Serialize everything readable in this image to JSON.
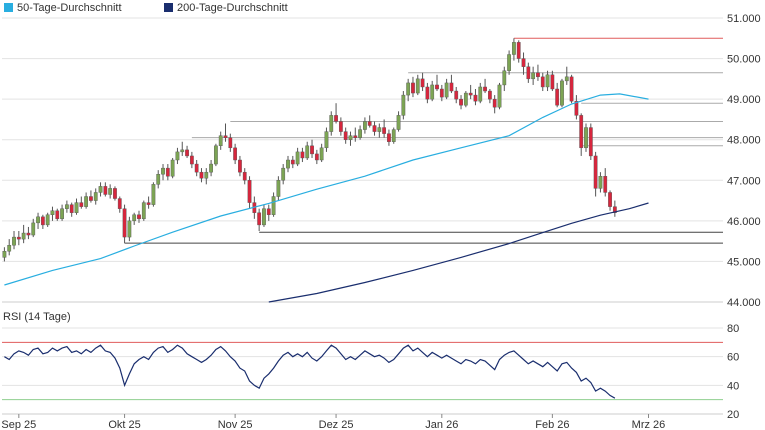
{
  "legend": {
    "ma50_label": "50-Tage-Durchschnitt",
    "ma200_label": "200-Tage-Durchschnitt"
  },
  "rsi_label": "RSI (14 Tage)",
  "colors": {
    "ma50": "#29aee0",
    "ma200": "#1a2e6e",
    "up": "#7ca454",
    "down": "#d7263d",
    "rsi_line": "#1a2e6e",
    "rsi_upper": "#e05c5c",
    "rsi_lower": "#8fcf8f",
    "grid": "#e3e3e3",
    "level": "#444444",
    "level_light": "#aaaaaa",
    "peak": "#e05c5c"
  },
  "chart_data": [
    {
      "type": "candlestick",
      "ylim": [
        44.0,
        51.0
      ],
      "y_ticks": [
        "51.000",
        "50.000",
        "49.000",
        "48.000",
        "47.000",
        "46.000",
        "45.000",
        "44.000"
      ],
      "y_tick_values": [
        51,
        50,
        49,
        48,
        47,
        46,
        45,
        44
      ],
      "x_ticks": [
        {
          "label": "Sep 25",
          "index": 3
        },
        {
          "label": "Okt 25",
          "index": 25
        },
        {
          "label": "Nov 25",
          "index": 48
        },
        {
          "label": "Dez 25",
          "index": 69
        },
        {
          "label": "Jan 26",
          "index": 91
        },
        {
          "label": "Feb 26",
          "index": 114
        },
        {
          "label": "Mrz 26",
          "index": 134
        }
      ],
      "n_days": 150,
      "ohlc": [
        [
          45.1,
          45.35,
          45.0,
          45.25
        ],
        [
          45.25,
          45.55,
          45.15,
          45.4
        ],
        [
          45.4,
          45.75,
          45.3,
          45.6
        ],
        [
          45.6,
          45.75,
          45.4,
          45.55
        ],
        [
          45.55,
          45.9,
          45.45,
          45.7
        ],
        [
          45.7,
          45.85,
          45.55,
          45.65
        ],
        [
          45.65,
          46.05,
          45.6,
          45.95
        ],
        [
          45.95,
          46.2,
          45.8,
          46.1
        ],
        [
          46.1,
          46.15,
          45.8,
          45.9
        ],
        [
          45.9,
          46.2,
          45.85,
          46.15
        ],
        [
          46.15,
          46.35,
          46.0,
          46.25
        ],
        [
          46.25,
          46.3,
          46.0,
          46.05
        ],
        [
          46.05,
          46.4,
          46.0,
          46.3
        ],
        [
          46.3,
          46.5,
          46.2,
          46.4
        ],
        [
          46.4,
          46.45,
          46.1,
          46.2
        ],
        [
          46.2,
          46.55,
          46.15,
          46.45
        ],
        [
          46.45,
          46.6,
          46.3,
          46.35
        ],
        [
          46.35,
          46.7,
          46.3,
          46.6
        ],
        [
          46.6,
          46.75,
          46.45,
          46.5
        ],
        [
          46.5,
          46.8,
          46.4,
          46.7
        ],
        [
          46.7,
          46.95,
          46.6,
          46.85
        ],
        [
          46.85,
          46.95,
          46.6,
          46.65
        ],
        [
          46.65,
          46.9,
          46.55,
          46.8
        ],
        [
          46.8,
          46.85,
          46.5,
          46.55
        ],
        [
          46.55,
          46.6,
          46.2,
          46.3
        ],
        [
          46.3,
          46.4,
          45.45,
          45.6
        ],
        [
          45.6,
          46.1,
          45.5,
          46.0
        ],
        [
          46.0,
          46.2,
          45.9,
          46.15
        ],
        [
          46.15,
          46.25,
          45.95,
          46.05
        ],
        [
          46.05,
          46.5,
          46.0,
          46.45
        ],
        [
          46.45,
          46.6,
          46.3,
          46.4
        ],
        [
          46.4,
          46.95,
          46.35,
          46.9
        ],
        [
          46.9,
          47.25,
          46.8,
          47.15
        ],
        [
          47.15,
          47.4,
          47.0,
          47.3
        ],
        [
          47.3,
          47.4,
          47.0,
          47.1
        ],
        [
          47.1,
          47.55,
          47.05,
          47.5
        ],
        [
          47.5,
          47.8,
          47.4,
          47.7
        ],
        [
          47.7,
          47.95,
          47.6,
          47.75
        ],
        [
          47.75,
          47.85,
          47.55,
          47.6
        ],
        [
          47.6,
          47.7,
          47.3,
          47.4
        ],
        [
          47.4,
          47.5,
          47.1,
          47.2
        ],
        [
          47.2,
          47.3,
          46.95,
          47.05
        ],
        [
          47.05,
          47.3,
          46.9,
          47.2
        ],
        [
          47.2,
          47.5,
          47.1,
          47.4
        ],
        [
          47.4,
          47.9,
          47.35,
          47.85
        ],
        [
          47.85,
          48.2,
          47.75,
          48.1
        ],
        [
          48.1,
          48.4,
          47.95,
          48.05
        ],
        [
          48.05,
          48.15,
          47.7,
          47.8
        ],
        [
          47.8,
          47.9,
          47.4,
          47.5
        ],
        [
          47.5,
          47.6,
          47.1,
          47.2
        ],
        [
          47.2,
          47.3,
          46.9,
          47.0
        ],
        [
          47.0,
          47.1,
          46.3,
          46.45
        ],
        [
          46.45,
          46.6,
          46.05,
          46.2
        ],
        [
          46.2,
          46.3,
          45.75,
          45.9
        ],
        [
          45.9,
          46.4,
          45.85,
          46.3
        ],
        [
          46.3,
          46.4,
          46.0,
          46.15
        ],
        [
          46.15,
          46.7,
          46.1,
          46.6
        ],
        [
          46.6,
          47.1,
          46.5,
          47.0
        ],
        [
          47.0,
          47.4,
          46.9,
          47.3
        ],
        [
          47.3,
          47.6,
          47.2,
          47.5
        ],
        [
          47.5,
          47.6,
          47.3,
          47.4
        ],
        [
          47.4,
          47.8,
          47.35,
          47.7
        ],
        [
          47.7,
          47.8,
          47.45,
          47.55
        ],
        [
          47.55,
          47.95,
          47.5,
          47.85
        ],
        [
          47.85,
          48.0,
          47.55,
          47.65
        ],
        [
          47.65,
          47.75,
          47.4,
          47.5
        ],
        [
          47.5,
          47.9,
          47.45,
          47.8
        ],
        [
          47.8,
          48.3,
          47.7,
          48.2
        ],
        [
          48.2,
          48.7,
          48.1,
          48.6
        ],
        [
          48.6,
          48.9,
          48.4,
          48.45
        ],
        [
          48.45,
          48.55,
          48.1,
          48.2
        ],
        [
          48.2,
          48.3,
          47.9,
          48.0
        ],
        [
          48.0,
          48.2,
          47.85,
          48.1
        ],
        [
          48.1,
          48.3,
          47.95,
          48.05
        ],
        [
          48.05,
          48.35,
          48.0,
          48.25
        ],
        [
          48.25,
          48.55,
          48.15,
          48.45
        ],
        [
          48.45,
          48.6,
          48.3,
          48.35
        ],
        [
          48.35,
          48.45,
          48.1,
          48.2
        ],
        [
          48.2,
          48.4,
          48.05,
          48.3
        ],
        [
          48.3,
          48.5,
          48.05,
          48.15
        ],
        [
          48.15,
          48.25,
          47.85,
          47.95
        ],
        [
          47.95,
          48.3,
          47.9,
          48.25
        ],
        [
          48.25,
          48.7,
          48.2,
          48.6
        ],
        [
          48.6,
          49.2,
          48.5,
          49.1
        ],
        [
          49.1,
          49.5,
          48.95,
          49.4
        ],
        [
          49.4,
          49.55,
          49.05,
          49.15
        ],
        [
          49.15,
          49.6,
          49.1,
          49.5
        ],
        [
          49.5,
          49.65,
          49.2,
          49.3
        ],
        [
          49.3,
          49.4,
          48.9,
          49.0
        ],
        [
          49.0,
          49.45,
          48.95,
          49.35
        ],
        [
          49.35,
          49.6,
          49.2,
          49.25
        ],
        [
          49.25,
          49.35,
          48.95,
          49.05
        ],
        [
          49.05,
          49.5,
          49.0,
          49.4
        ],
        [
          49.4,
          49.6,
          49.15,
          49.2
        ],
        [
          49.2,
          49.3,
          48.9,
          49.0
        ],
        [
          49.0,
          49.1,
          48.75,
          48.85
        ],
        [
          48.85,
          49.2,
          48.8,
          49.15
        ],
        [
          49.15,
          49.35,
          49.0,
          49.1
        ],
        [
          49.1,
          49.25,
          48.85,
          48.95
        ],
        [
          48.95,
          49.4,
          48.9,
          49.3
        ],
        [
          49.3,
          49.5,
          49.15,
          49.2
        ],
        [
          49.2,
          49.25,
          48.9,
          49.0
        ],
        [
          49.0,
          49.1,
          48.65,
          48.8
        ],
        [
          48.8,
          49.4,
          48.75,
          49.35
        ],
        [
          49.35,
          49.8,
          49.2,
          49.7
        ],
        [
          49.7,
          50.2,
          49.6,
          50.1
        ],
        [
          50.1,
          50.5,
          49.95,
          50.4
        ],
        [
          50.4,
          50.45,
          49.9,
          50.0
        ],
        [
          50.0,
          50.15,
          49.6,
          49.8
        ],
        [
          49.8,
          49.9,
          49.4,
          49.5
        ],
        [
          49.5,
          49.8,
          49.35,
          49.65
        ],
        [
          49.65,
          49.85,
          49.45,
          49.55
        ],
        [
          49.55,
          49.65,
          49.2,
          49.3
        ],
        [
          49.3,
          49.7,
          49.2,
          49.6
        ],
        [
          49.6,
          49.7,
          49.2,
          49.25
        ],
        [
          49.25,
          49.4,
          48.8,
          48.85
        ],
        [
          48.85,
          49.5,
          48.8,
          49.45
        ],
        [
          49.45,
          49.8,
          49.35,
          49.55
        ],
        [
          49.55,
          49.6,
          48.9,
          48.95
        ],
        [
          48.95,
          49.1,
          48.5,
          48.6
        ],
        [
          48.6,
          48.65,
          47.6,
          47.8
        ],
        [
          47.8,
          48.4,
          47.7,
          48.3
        ],
        [
          48.3,
          48.4,
          47.5,
          47.6
        ],
        [
          47.6,
          47.7,
          46.6,
          46.8
        ],
        [
          46.8,
          47.2,
          46.7,
          47.1
        ],
        [
          47.1,
          47.3,
          46.6,
          46.7
        ],
        [
          46.7,
          46.75,
          46.25,
          46.35
        ],
        [
          46.35,
          46.5,
          46.1,
          46.2
        ]
      ],
      "ma50": [
        [
          0,
          44.42
        ],
        [
          10,
          44.78
        ],
        [
          20,
          45.07
        ],
        [
          27,
          45.38
        ],
        [
          35,
          45.72
        ],
        [
          45,
          46.12
        ],
        [
          55,
          46.43
        ],
        [
          65,
          46.78
        ],
        [
          75,
          47.1
        ],
        [
          85,
          47.5
        ],
        [
          95,
          47.8
        ],
        [
          105,
          48.1
        ],
        [
          112,
          48.55
        ],
        [
          118,
          48.88
        ],
        [
          124,
          49.1
        ],
        [
          128,
          49.13
        ],
        [
          134,
          49.0
        ]
      ],
      "ma200": [
        [
          55,
          44.0
        ],
        [
          65,
          44.21
        ],
        [
          75,
          44.48
        ],
        [
          85,
          44.78
        ],
        [
          95,
          45.1
        ],
        [
          105,
          45.44
        ],
        [
          112,
          45.71
        ],
        [
          118,
          45.94
        ],
        [
          124,
          46.14
        ],
        [
          130,
          46.3
        ],
        [
          134,
          46.44
        ]
      ],
      "levels": [
        {
          "value": 50.5,
          "from": 106,
          "type": "peak"
        },
        {
          "value": 49.65,
          "from": 84,
          "type": "light"
        },
        {
          "value": 48.9,
          "from": 120,
          "type": "light"
        },
        {
          "value": 48.45,
          "from": 47,
          "type": "light"
        },
        {
          "value": 48.05,
          "from": 39,
          "type": "light"
        },
        {
          "value": 47.85,
          "from": 120,
          "type": "light"
        },
        {
          "value": 45.72,
          "from": 53,
          "type": "dark"
        },
        {
          "value": 45.45,
          "from": 25,
          "type": "dark"
        }
      ]
    },
    {
      "type": "line",
      "name": "RSI",
      "ylim": [
        20,
        80
      ],
      "y_ticks": [
        "80",
        "60",
        "40",
        "20"
      ],
      "y_tick_values": [
        80,
        60,
        40,
        20
      ],
      "upper_level": 70,
      "lower_level": 30,
      "values": [
        60,
        58,
        62,
        64,
        63,
        61,
        65,
        66,
        62,
        63,
        66,
        64,
        66,
        67,
        63,
        64,
        62,
        65,
        63,
        66,
        68,
        64,
        63,
        59,
        52,
        40,
        48,
        55,
        58,
        60,
        58,
        63,
        66,
        67,
        63,
        65,
        68,
        66,
        62,
        60,
        58,
        56,
        58,
        61,
        65,
        67,
        64,
        60,
        57,
        52,
        50,
        43,
        40,
        38,
        45,
        48,
        52,
        57,
        61,
        63,
        60,
        62,
        60,
        63,
        59,
        57,
        60,
        64,
        68,
        66,
        62,
        58,
        60,
        58,
        61,
        64,
        62,
        60,
        61,
        59,
        56,
        58,
        62,
        66,
        68,
        64,
        66,
        63,
        60,
        63,
        61,
        59,
        61,
        59,
        57,
        55,
        58,
        57,
        55,
        58,
        57,
        54,
        51,
        58,
        61,
        63,
        64,
        61,
        58,
        55,
        57,
        55,
        53,
        56,
        53,
        50,
        55,
        56,
        52,
        49,
        43,
        45,
        42,
        36,
        38,
        36,
        33,
        31
      ]
    }
  ]
}
